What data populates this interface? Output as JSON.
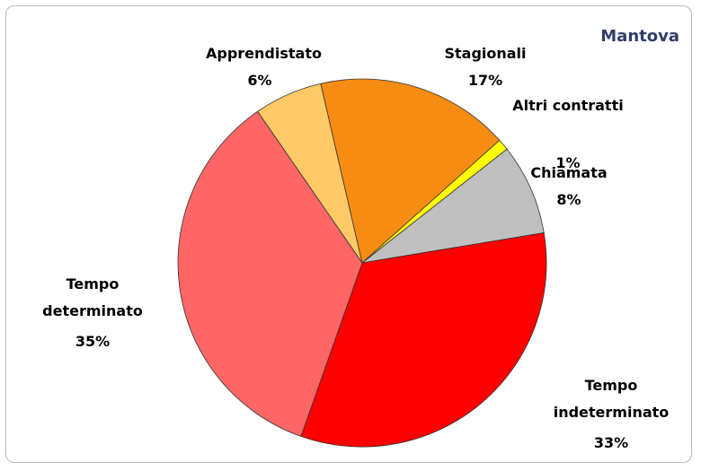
{
  "chart_data": {
    "type": "pie",
    "title": "Mantova",
    "categories": [
      "Apprendistato",
      "Stagionali",
      "Altri contratti",
      "Chiamata",
      "Tempo indeterminato",
      "Tempo determinato"
    ],
    "values": [
      6,
      17,
      1,
      8,
      33,
      35
    ],
    "value_labels": [
      "6%",
      "17%",
      "1%",
      "8%",
      "33%",
      "35%"
    ],
    "colors": [
      "#FFC966",
      "#F78C12",
      "#FFFF00",
      "#BFBFBF",
      "#FF0000",
      "#FF6666"
    ]
  }
}
